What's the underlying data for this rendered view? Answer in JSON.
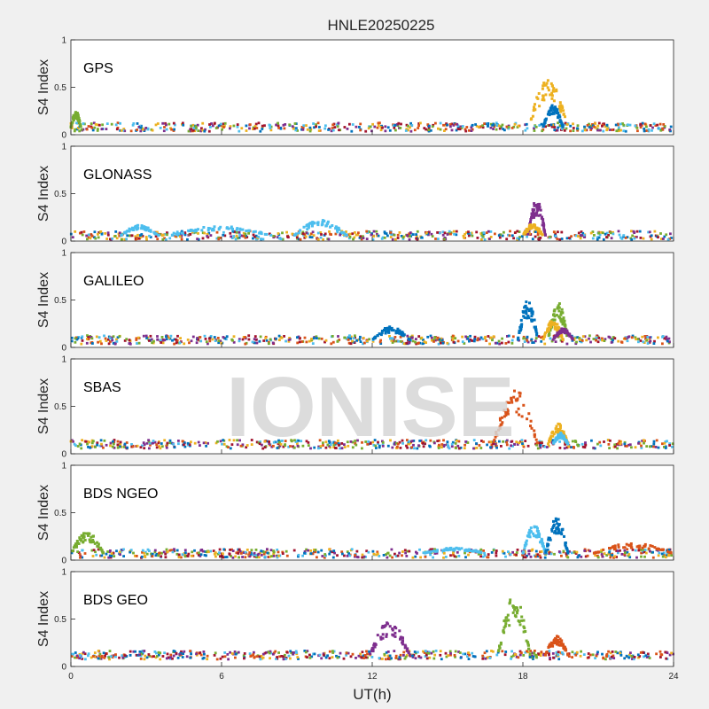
{
  "figure": {
    "title": "HNLE20250225",
    "xlabel": "UT(h)",
    "ylabel": "S4 Index",
    "watermark": "IONISE",
    "xticks": [
      "0",
      "6",
      "12",
      "18",
      "24"
    ],
    "yticks": [
      "0",
      "0.5",
      "1"
    ]
  },
  "chart_data": {
    "type": "scatter",
    "x_unit": "UT hours",
    "xlim": [
      0,
      24
    ],
    "ylim": [
      0,
      1
    ],
    "grid": false,
    "colors": [
      "#0072BD",
      "#D95319",
      "#EDB120",
      "#7E2F8E",
      "#77AC30",
      "#4DBEEE",
      "#A2142F"
    ],
    "panels": [
      {
        "label": "GPS",
        "baseline": 0.08,
        "features": [
          {
            "color": "#EDB120",
            "x_range": [
              18.2,
              19.8
            ],
            "y_peak": 0.58
          },
          {
            "color": "#0072BD",
            "x_range": [
              18.8,
              19.6
            ],
            "y_peak": 0.32
          },
          {
            "color": "#77AC30",
            "x_range": [
              0.0,
              0.4
            ],
            "y_peak": 0.25
          }
        ]
      },
      {
        "label": "GLONASS",
        "baseline": 0.06,
        "features": [
          {
            "color": "#7E2F8E",
            "x_range": [
              18.2,
              18.9
            ],
            "y_peak": 0.44
          },
          {
            "color": "#EDB120",
            "x_range": [
              18.0,
              18.8
            ],
            "y_peak": 0.18
          },
          {
            "color": "#4DBEEE",
            "x_range": [
              2.0,
              3.5
            ],
            "y_peak": 0.17
          },
          {
            "color": "#4DBEEE",
            "x_range": [
              4.0,
              8.0
            ],
            "y_peak": 0.16
          },
          {
            "color": "#4DBEEE",
            "x_range": [
              8.9,
              11.0
            ],
            "y_peak": 0.22
          }
        ]
      },
      {
        "label": "GALILEO",
        "baseline": 0.08,
        "features": [
          {
            "color": "#0072BD",
            "x_range": [
              17.8,
              18.6
            ],
            "y_peak": 0.5
          },
          {
            "color": "#77AC30",
            "x_range": [
              19.0,
              19.8
            ],
            "y_peak": 0.48
          },
          {
            "color": "#EDB120",
            "x_range": [
              18.8,
              19.6
            ],
            "y_peak": 0.3
          },
          {
            "color": "#7E2F8E",
            "x_range": [
              19.2,
              20.0
            ],
            "y_peak": 0.2
          },
          {
            "color": "#0072BD",
            "x_range": [
              12.0,
              13.5
            ],
            "y_peak": 0.22
          }
        ]
      },
      {
        "label": "SBAS",
        "baseline": 0.1,
        "features": [
          {
            "color": "#D95319",
            "x_range": [
              16.8,
              18.6
            ],
            "y_peak": 0.68
          },
          {
            "color": "#EDB120",
            "x_range": [
              19.0,
              19.8
            ],
            "y_peak": 0.32
          },
          {
            "color": "#4DBEEE",
            "x_range": [
              19.2,
              19.8
            ],
            "y_peak": 0.22
          }
        ]
      },
      {
        "label": "BDS NGEO",
        "baseline": 0.07,
        "features": [
          {
            "color": "#4DBEEE",
            "x_range": [
              18.0,
              18.9
            ],
            "y_peak": 0.38
          },
          {
            "color": "#0072BD",
            "x_range": [
              18.9,
              19.8
            ],
            "y_peak": 0.45
          },
          {
            "color": "#77AC30",
            "x_range": [
              0.0,
              1.3
            ],
            "y_peak": 0.3
          },
          {
            "color": "#D95319",
            "x_range": [
              20.8,
              24.0
            ],
            "y_peak": 0.18
          },
          {
            "color": "#4DBEEE",
            "x_range": [
              14.0,
              16.5
            ],
            "y_peak": 0.13
          }
        ]
      },
      {
        "label": "BDS GEO",
        "baseline": 0.12,
        "features": [
          {
            "color": "#7E2F8E",
            "x_range": [
              11.9,
              13.5
            ],
            "y_peak": 0.48
          },
          {
            "color": "#77AC30",
            "x_range": [
              17.0,
              18.3
            ],
            "y_peak": 0.75
          },
          {
            "color": "#D95319",
            "x_range": [
              18.9,
              19.8
            ],
            "y_peak": 0.32
          }
        ]
      }
    ]
  }
}
